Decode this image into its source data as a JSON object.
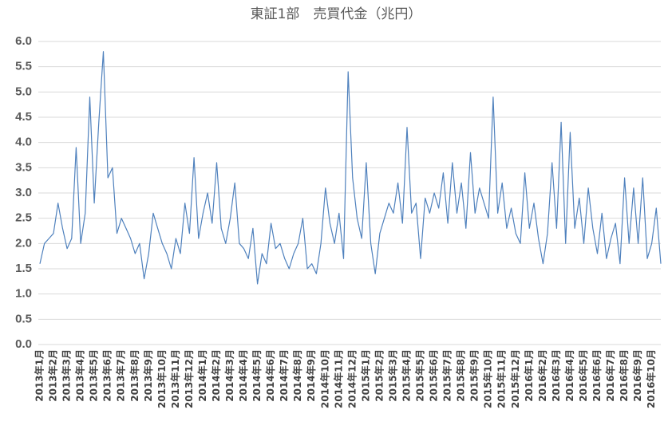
{
  "chart_data": {
    "type": "line",
    "title": "東証1部　売買代金（兆円）",
    "categories": [
      "2013年1月",
      null,
      null,
      "2013年2月",
      null,
      null,
      "2013年3月",
      null,
      null,
      "2013年4月",
      null,
      null,
      "2013年5月",
      null,
      null,
      "2013年6月",
      null,
      null,
      "2013年7月",
      null,
      null,
      "2013年8月",
      null,
      null,
      "2013年9月",
      null,
      null,
      "2013年10月",
      null,
      null,
      "2013年11月",
      null,
      null,
      "2013年12月",
      null,
      null,
      "2014年1月",
      null,
      null,
      "2014年2月",
      null,
      null,
      "2014年3月",
      null,
      null,
      "2014年4月",
      null,
      null,
      "2014年5月",
      null,
      null,
      "2014年6月",
      null,
      null,
      "2014年7月",
      null,
      null,
      "2014年8月",
      null,
      null,
      "2014年9月",
      null,
      null,
      "2014年10月",
      null,
      null,
      "2014年11月",
      null,
      null,
      "2014年12月",
      null,
      null,
      "2015年1月",
      null,
      null,
      "2015年2月",
      null,
      null,
      "2015年3月",
      null,
      null,
      "2015年4月",
      null,
      null,
      "2015年5月",
      null,
      null,
      "2015年6月",
      null,
      null,
      "2015年7月",
      null,
      null,
      "2015年8月",
      null,
      null,
      "2015年9月",
      null,
      null,
      "2015年10月",
      null,
      null,
      "2015年11月",
      null,
      null,
      "2015年12月",
      null,
      null,
      "2016年1月",
      null,
      null,
      "2016年2月",
      null,
      null,
      "2016年3月",
      null,
      null,
      "2016年4月",
      null,
      null,
      "2016年5月",
      null,
      null,
      "2016年6月",
      null,
      null,
      "2016年7月",
      null,
      null,
      "2016年8月",
      null,
      null,
      "2016年9月",
      null,
      null,
      "2016年10月",
      null,
      null
    ],
    "values": [
      1.6,
      2.0,
      2.1,
      2.2,
      2.8,
      2.3,
      1.9,
      2.1,
      3.9,
      2.0,
      2.6,
      4.9,
      2.8,
      4.4,
      5.8,
      3.3,
      3.5,
      2.2,
      2.5,
      2.3,
      2.1,
      1.8,
      2.0,
      1.3,
      1.8,
      2.6,
      2.3,
      2.0,
      1.8,
      1.5,
      2.1,
      1.8,
      2.8,
      2.2,
      3.7,
      2.1,
      2.6,
      3.0,
      2.4,
      3.6,
      2.3,
      2.0,
      2.5,
      3.2,
      2.0,
      1.9,
      1.7,
      2.3,
      1.2,
      1.8,
      1.6,
      2.4,
      1.9,
      2.0,
      1.7,
      1.5,
      1.8,
      2.0,
      2.5,
      1.5,
      1.6,
      1.4,
      2.0,
      3.1,
      2.4,
      2.0,
      2.6,
      1.7,
      5.4,
      3.3,
      2.5,
      2.1,
      3.6,
      2.0,
      1.4,
      2.2,
      2.5,
      2.8,
      2.6,
      3.2,
      2.4,
      4.3,
      2.6,
      2.8,
      1.7,
      2.9,
      2.6,
      3.0,
      2.7,
      3.4,
      2.4,
      3.6,
      2.6,
      3.2,
      2.3,
      3.8,
      2.6,
      3.1,
      2.8,
      2.5,
      4.9,
      2.6,
      3.2,
      2.3,
      2.7,
      2.2,
      2.0,
      3.4,
      2.3,
      2.8,
      2.1,
      1.6,
      2.2,
      3.6,
      2.3,
      4.4,
      2.0,
      4.2,
      2.3,
      2.9,
      2.0,
      3.1,
      2.3,
      1.8,
      2.6,
      1.7,
      2.1,
      2.4,
      1.6,
      3.3,
      2.0,
      3.1,
      2.0,
      3.3,
      1.7,
      2.0,
      2.7,
      1.6
    ],
    "color": "#4f81bd",
    "ylim": [
      0,
      6
    ],
    "yticks": [
      {
        "value": 0,
        "label": "0.0"
      },
      0.5,
      {
        "value": 1,
        "label": "1.0"
      },
      1.5,
      {
        "value": 2,
        "label": "2.0"
      },
      2.5,
      {
        "value": 3,
        "label": "3.0"
      },
      3.5,
      {
        "value": 4,
        "label": "4.0"
      },
      4.5,
      {
        "value": 5,
        "label": "5.0"
      },
      5.5,
      {
        "value": 6,
        "label": "6.0"
      }
    ],
    "grid": true
  }
}
